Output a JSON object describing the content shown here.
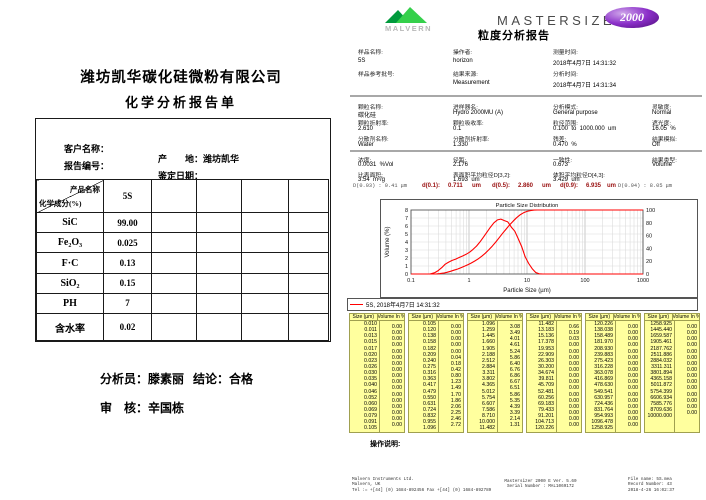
{
  "left_doc": {
    "company": "潍坊凯华碳化硅微粉有限公司",
    "doc_title": "化学分析报告单",
    "info": {
      "customer_label": "客户名称：",
      "origin_label": "产　　地：",
      "origin_value": "潍坊凯华",
      "report_no_label": "报告编号：",
      "appraisal_date_label": "鉴定日期："
    },
    "table": {
      "corner_top": "产品名称",
      "corner_bottom": "化学成分(%)",
      "sample_id": "5S",
      "rows": [
        {
          "component": "SiC",
          "value": "99.00"
        },
        {
          "component": "Fe₂O₃",
          "value": "0.025"
        },
        {
          "component": "F·C",
          "value": "0.13"
        },
        {
          "component": "SiO₂",
          "value": "0.15"
        },
        {
          "component": "PH",
          "value": "7"
        },
        {
          "component": "含水率",
          "value": "0.02"
        }
      ]
    },
    "signoff": {
      "analyst_label": "分析员：",
      "analyst_name": "滕素丽",
      "conclusion_label": "结论：",
      "conclusion_value": "合格",
      "reviewer_label": "审　核：",
      "reviewer_name": "辛国栋"
    }
  },
  "report": {
    "brand_name": "MALVERN",
    "product_name": "MASTERSIZER",
    "model": "2000",
    "report_title": "粒度分析报告",
    "sample_info_rows": [
      [
        {
          "l": "样品名称:",
          "v": "5S"
        },
        {
          "l": "操作者:",
          "v": "horizon"
        },
        {
          "l": "测量时间:",
          "v": "2018年4月7日 14:31:32"
        }
      ],
      [
        {
          "l": "样品参考批号:",
          "v": ""
        },
        {
          "l": "结果来源:",
          "v": "Measurement"
        },
        {
          "l": "分析时间:",
          "v": "2018年4月7日 14:31:34"
        }
      ]
    ],
    "params_rows": [
      [
        {
          "l": "颗粒名称:",
          "v": "碳化硅"
        },
        {
          "l": "进样器名:",
          "v": "Hydro 2000MU (A)"
        },
        {
          "l": "分析模式:",
          "v": "General purpose"
        },
        {
          "l": "灵敏度:",
          "v": "Normal"
        }
      ],
      [
        {
          "l": "颗粒折射率:",
          "v": "2.610"
        },
        {
          "l": "颗粒吸收率:",
          "v": "0.1"
        },
        {
          "l": "粒径范围:",
          "v": "0.100  to  1000.000  um"
        },
        {
          "l": "遮光度:",
          "v": "16.05  %"
        }
      ],
      [
        {
          "l": "分散剂名称:",
          "v": "Water"
        },
        {
          "l": "分散剂折射率:",
          "v": "1.330"
        },
        {
          "l": "残差:",
          "v": "0.470  %"
        },
        {
          "l": "结果模拟:",
          "v": "Off"
        }
      ]
    ],
    "results_rows": [
      [
        {
          "l": "浓度:",
          "v": "0.0031  %Vol"
        },
        {
          "l": "径距:",
          "v": "2.176"
        },
        {
          "l": "一致性:",
          "v": "0.673"
        },
        {
          "l": "结果类型:",
          "v": "Volume"
        }
      ],
      [
        {
          "l": "比表面积:",
          "v": "3.54  m²/g"
        },
        {
          "l": "表面积平均粒径D[3,2]:",
          "v": "1.693  um"
        },
        {
          "l": "体积平均粒径D[4,3]:",
          "v": "3.429  um"
        },
        null
      ]
    ],
    "percentiles": {
      "left_note": "D(0.03) : 0.41 μm",
      "d_values": [
        {
          "label": "d(0.1):",
          "value": "0.711",
          "unit": "um"
        },
        {
          "label": "d(0.5):",
          "value": "2.860",
          "unit": "um"
        },
        {
          "label": "d(0.9):",
          "value": "6.935",
          "unit": "um"
        }
      ],
      "right_note": "D(0.94) : 8.05 μm"
    },
    "legend_label": "5S, 2018年4月7日 14:31:32",
    "operation_note_label": "操作说明:",
    "page_footer": {
      "left": [
        "Malvern Instruments Ltd.",
        "Malvern, UK",
        "Tel := +[44] (0) 1684-892456 Fax +[44] (0) 1684-892789"
      ],
      "center": [
        "Mastersizer 2000 E Ver. 5.60",
        "Serial Number : MAL1069172"
      ],
      "right": [
        "File name: 5S.mea",
        "Record Number: 43",
        "2018-4-26 16:02:37"
      ]
    }
  },
  "chart_data": {
    "type": "line",
    "title": "Particle Size Distribution",
    "xlabel": "Particle Size (µm)",
    "ylabel_left": "Volume (%)",
    "x_scale": "log",
    "xlim": [
      0.1,
      1000
    ],
    "ylim_left": [
      0,
      8
    ],
    "ylim_right": [
      0,
      100
    ],
    "x_ticks": [
      0.1,
      1,
      10,
      100,
      1000
    ],
    "y_ticks_left": [
      0,
      1,
      2,
      3,
      4,
      5,
      6,
      7,
      8
    ],
    "y_ticks_right": [
      0,
      20,
      40,
      60,
      80,
      100
    ],
    "grid": true,
    "legend_position": "bottom",
    "series": [
      {
        "name": "volume_frequency",
        "axis": "left",
        "color": "#ff0000",
        "points": [
          [
            0.105,
            0
          ],
          [
            0.209,
            0
          ],
          [
            0.224,
            0.04
          ],
          [
            0.257,
            0.18
          ],
          [
            0.295,
            0.42
          ],
          [
            0.339,
            0.8
          ],
          [
            0.389,
            1.23
          ],
          [
            0.447,
            1.49
          ],
          [
            0.513,
            1.7
          ],
          [
            0.589,
            1.86
          ],
          [
            0.676,
            2.06
          ],
          [
            0.776,
            2.25
          ],
          [
            0.891,
            2.46
          ],
          [
            1.023,
            2.72
          ],
          [
            1.174,
            3.08
          ],
          [
            1.349,
            3.49
          ],
          [
            1.549,
            4.01
          ],
          [
            1.778,
            4.61
          ],
          [
            2.042,
            5.24
          ],
          [
            2.344,
            5.86
          ],
          [
            2.691,
            6.4
          ],
          [
            3.089,
            6.76
          ],
          [
            3.547,
            6.86
          ],
          [
            4.072,
            6.67
          ],
          [
            4.675,
            6.51
          ],
          [
            5.368,
            5.86
          ],
          [
            6.163,
            5.35
          ],
          [
            7.077,
            4.39
          ],
          [
            8.124,
            3.39
          ],
          [
            9.326,
            2.14
          ],
          [
            10.715,
            1.31
          ],
          [
            12.303,
            0.66
          ],
          [
            14.125,
            0.19
          ],
          [
            16.218,
            0.03
          ],
          [
            18.621,
            0
          ],
          [
            1000,
            0
          ]
        ]
      },
      {
        "name": "cumulative_volume",
        "axis": "right",
        "color": "#ff0000",
        "points": [
          [
            0.1,
            0
          ],
          [
            0.209,
            0
          ],
          [
            0.24,
            0.04
          ],
          [
            0.275,
            0.22
          ],
          [
            0.316,
            0.64
          ],
          [
            0.363,
            1.44
          ],
          [
            0.417,
            2.67
          ],
          [
            0.479,
            4.16
          ],
          [
            0.55,
            5.86
          ],
          [
            0.631,
            7.72
          ],
          [
            0.724,
            9.78
          ],
          [
            0.832,
            12.03
          ],
          [
            0.955,
            14.49
          ],
          [
            1.096,
            17.21
          ],
          [
            1.259,
            20.29
          ],
          [
            1.445,
            23.78
          ],
          [
            1.66,
            27.79
          ],
          [
            1.905,
            32.4
          ],
          [
            2.188,
            37.64
          ],
          [
            2.512,
            43.5
          ],
          [
            2.884,
            49.9
          ],
          [
            3.311,
            56.66
          ],
          [
            3.802,
            63.52
          ],
          [
            4.365,
            70.19
          ],
          [
            5.012,
            76.7
          ],
          [
            5.754,
            82.56
          ],
          [
            6.607,
            87.91
          ],
          [
            7.586,
            92.3
          ],
          [
            8.71,
            95.69
          ],
          [
            10,
            97.83
          ],
          [
            11.482,
            99.14
          ],
          [
            13.183,
            99.8
          ],
          [
            15.136,
            99.99
          ],
          [
            17.378,
            100
          ],
          [
            1000,
            100
          ]
        ]
      }
    ]
  },
  "size_table": {
    "col_headers": [
      "Size (µm)",
      "Volume In %"
    ],
    "groups": [
      {
        "sizes": [
          "0.010",
          "0.011",
          "0.013",
          "0.015",
          "0.017",
          "0.020",
          "0.023",
          "0.026",
          "0.030",
          "0.035",
          "0.040",
          "0.046",
          "0.052",
          "0.060",
          "0.069",
          "0.079",
          "0.091",
          "0.105"
        ],
        "volumes": [
          "0.00",
          "0.00",
          "0.00",
          "0.00",
          "0.00",
          "0.00",
          "0.00",
          "0.00",
          "0.00",
          "0.00",
          "0.00",
          "0.00",
          "0.00",
          "0.00",
          "0.00",
          "0.00",
          "0.00"
        ]
      },
      {
        "sizes": [
          "0.105",
          "0.120",
          "0.138",
          "0.158",
          "0.182",
          "0.209",
          "0.240",
          "0.275",
          "0.316",
          "0.363",
          "0.417",
          "0.479",
          "0.550",
          "0.631",
          "0.724",
          "0.832",
          "0.955",
          "1.096"
        ],
        "volumes": [
          "0.00",
          "0.00",
          "0.00",
          "0.00",
          "0.00",
          "0.04",
          "0.18",
          "0.42",
          "0.80",
          "1.23",
          "1.49",
          "1.70",
          "1.86",
          "2.06",
          "2.25",
          "2.46",
          "2.72"
        ]
      },
      {
        "sizes": [
          "1.096",
          "1.259",
          "1.445",
          "1.660",
          "1.905",
          "2.188",
          "2.512",
          "2.884",
          "3.311",
          "3.802",
          "4.365",
          "5.012",
          "5.754",
          "6.607",
          "7.586",
          "8.710",
          "10.000",
          "11.482"
        ],
        "volumes": [
          "3.08",
          "3.49",
          "4.01",
          "4.61",
          "5.24",
          "5.86",
          "6.40",
          "6.76",
          "6.86",
          "6.67",
          "6.51",
          "5.86",
          "5.35",
          "4.39",
          "3.39",
          "2.14",
          "1.31"
        ]
      },
      {
        "sizes": [
          "11.482",
          "13.183",
          "15.136",
          "17.378",
          "19.953",
          "22.909",
          "26.303",
          "30.200",
          "34.674",
          "39.811",
          "45.709",
          "52.481",
          "60.256",
          "69.183",
          "79.433",
          "91.201",
          "104.713",
          "120.226"
        ],
        "volumes": [
          "0.66",
          "0.19",
          "0.03",
          "0.00",
          "0.00",
          "0.00",
          "0.00",
          "0.00",
          "0.00",
          "0.00",
          "0.00",
          "0.00",
          "0.00",
          "0.00",
          "0.00",
          "0.00",
          "0.00"
        ]
      },
      {
        "sizes": [
          "120.226",
          "138.038",
          "158.489",
          "181.970",
          "208.930",
          "239.883",
          "275.423",
          "316.228",
          "363.078",
          "416.869",
          "478.630",
          "549.541",
          "630.957",
          "724.436",
          "831.764",
          "954.993",
          "1096.478",
          "1258.925"
        ],
        "volumes": [
          "0.00",
          "0.00",
          "0.00",
          "0.00",
          "0.00",
          "0.00",
          "0.00",
          "0.00",
          "0.00",
          "0.00",
          "0.00",
          "0.00",
          "0.00",
          "0.00",
          "0.00",
          "0.00",
          "0.00"
        ]
      },
      {
        "sizes": [
          "1258.925",
          "1445.440",
          "1659.587",
          "1905.461",
          "2187.762",
          "2511.886",
          "2884.032",
          "3311.311",
          "3801.894",
          "4365.158",
          "5011.872",
          "5754.399",
          "6606.934",
          "7585.776",
          "8709.636",
          "10000.000"
        ],
        "volumes": [
          "0.00",
          "0.00",
          "0.00",
          "0.00",
          "0.00",
          "0.00",
          "0.00",
          "0.00",
          "0.00",
          "0.00",
          "0.00",
          "0.00",
          "0.00",
          "0.00",
          "0.00"
        ]
      }
    ]
  }
}
